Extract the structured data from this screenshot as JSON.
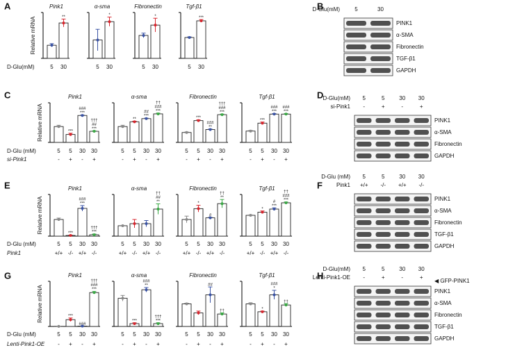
{
  "panel_labels": [
    "A",
    "B",
    "C",
    "D",
    "E",
    "F",
    "G",
    "H"
  ],
  "row_labels": [
    [
      "D-Glu(mM)"
    ],
    [
      "D-Glu (mM)",
      "si-Pink1"
    ],
    [
      "D-Glu (mM)",
      "Pink1"
    ],
    [
      "D-Glu (mM)",
      "Lenti-Pink1-OE"
    ]
  ],
  "chart_data": [
    {
      "type": "bar",
      "title": "Pink1",
      "y_label": "Relative mRNA",
      "categories": [
        "5",
        "30"
      ],
      "values": [
        1.0,
        2.7
      ],
      "errors": [
        0.12,
        0.3
      ],
      "colors": [
        "#3a53a4",
        "#d7262e"
      ],
      "ylim": [
        0,
        3.5
      ],
      "annotations": [
        [],
        [
          "**"
        ]
      ]
    },
    {
      "type": "bar",
      "title": "α-sma",
      "categories": [
        "5",
        "30"
      ],
      "values": [
        0.6,
        1.2
      ],
      "errors": [
        0.35,
        0.15
      ],
      "colors": [
        "#3a53a4",
        "#d7262e"
      ],
      "ylim": [
        0,
        1.5
      ],
      "annotations": [
        [],
        [
          "*"
        ]
      ]
    },
    {
      "type": "bar",
      "title": "Fibronectin",
      "categories": [
        "5",
        "30"
      ],
      "values": [
        1.0,
        1.45
      ],
      "errors": [
        0.1,
        0.3
      ],
      "colors": [
        "#3a53a4",
        "#d7262e"
      ],
      "ylim": [
        0,
        2
      ],
      "annotations": [
        [],
        [
          "*"
        ]
      ]
    },
    {
      "type": "bar",
      "title": "Tgf-β1",
      "categories": [
        "5",
        "30"
      ],
      "values": [
        1.0,
        1.8
      ],
      "errors": [
        0.03,
        0.06
      ],
      "colors": [
        "#3a53a4",
        "#d7262e"
      ],
      "ylim": [
        0,
        2.2
      ],
      "annotations": [
        [],
        [
          "***"
        ]
      ]
    },
    {
      "type": "bar",
      "title": "Pink1",
      "y_label": "Relative mRNA",
      "categories": [
        "5",
        "5",
        "30",
        "30"
      ],
      "secondary": [
        "-",
        "+",
        "-",
        "+"
      ],
      "values": [
        1.0,
        0.5,
        1.7,
        0.7
      ],
      "errors": [
        0.08,
        0.08,
        0.03,
        0.03
      ],
      "colors": [
        "#888888",
        "#d7262e",
        "#3a53a4",
        "#3aa845"
      ],
      "ylim": [
        0,
        2.5
      ],
      "annotations": [
        [],
        [
          "***"
        ],
        [
          "###",
          "***"
        ],
        [
          "†††",
          "##",
          "***"
        ]
      ]
    },
    {
      "type": "bar",
      "title": "α-sma",
      "categories": [
        "5",
        "5",
        "30",
        "30"
      ],
      "secondary": [
        "-",
        "+",
        "-",
        "+"
      ],
      "values": [
        1.0,
        1.3,
        1.5,
        1.8
      ],
      "errors": [
        0.08,
        0.04,
        0.03,
        0.05
      ],
      "colors": [
        "#888888",
        "#d7262e",
        "#3a53a4",
        "#3aa845"
      ],
      "ylim": [
        0,
        2.5
      ],
      "annotations": [
        [],
        [
          "**"
        ],
        [
          "##",
          "***"
        ],
        [
          "††",
          "###",
          "***"
        ]
      ]
    },
    {
      "type": "bar",
      "title": "Fibronectin",
      "categories": [
        "5",
        "5",
        "30",
        "30"
      ],
      "secondary": [
        "-",
        "+",
        "-",
        "+"
      ],
      "values": [
        1.0,
        2.2,
        1.3,
        2.8
      ],
      "errors": [
        0.05,
        0.08,
        0.05,
        0.06
      ],
      "colors": [
        "#888888",
        "#d7262e",
        "#3a53a4",
        "#3aa845"
      ],
      "ylim": [
        0,
        4
      ],
      "annotations": [
        [],
        [
          "***"
        ],
        [
          "###",
          "**"
        ],
        [
          "†††",
          "###",
          "***"
        ]
      ]
    },
    {
      "type": "bar",
      "title": "Tgf-β1",
      "categories": [
        "5",
        "5",
        "30",
        "30"
      ],
      "secondary": [
        "-",
        "+",
        "-",
        "+"
      ],
      "values": [
        1.0,
        1.7,
        2.5,
        2.5
      ],
      "errors": [
        0.05,
        0.1,
        0.05,
        0.05
      ],
      "colors": [
        "#888888",
        "#d7262e",
        "#3a53a4",
        "#3aa845"
      ],
      "ylim": [
        0,
        3.5
      ],
      "annotations": [
        [],
        [
          "***"
        ],
        [
          "###",
          "***"
        ],
        [
          "###",
          "***"
        ]
      ]
    },
    {
      "type": "bar",
      "title": "Pink1",
      "y_label": "Relative mRNA",
      "categories": [
        "5",
        "5",
        "30",
        "30"
      ],
      "secondary": [
        "+/+",
        "-/-",
        "+/+",
        "-/-"
      ],
      "values": [
        1.2,
        0.05,
        2.0,
        0.1
      ],
      "errors": [
        0.1,
        0.03,
        0.2,
        0.05
      ],
      "colors": [
        "#888888",
        "#d7262e",
        "#3a53a4",
        "#3aa845"
      ],
      "ylim": [
        0,
        3
      ],
      "annotations": [
        [],
        [
          "***"
        ],
        [
          "###",
          "***"
        ],
        [
          "†††",
          "***"
        ]
      ]
    },
    {
      "type": "bar",
      "title": "α-sma",
      "categories": [
        "5",
        "5",
        "30",
        "30"
      ],
      "secondary": [
        "+/+",
        "-/-",
        "+/+",
        "-/-"
      ],
      "values": [
        1.0,
        1.2,
        1.2,
        2.6
      ],
      "errors": [
        0.03,
        0.4,
        0.3,
        0.5
      ],
      "colors": [
        "#888888",
        "#d7262e",
        "#3a53a4",
        "#3aa845"
      ],
      "ylim": [
        0,
        4
      ],
      "annotations": [
        [],
        [],
        [],
        [
          "††",
          "##",
          "**"
        ]
      ]
    },
    {
      "type": "bar",
      "title": "Fibronectin",
      "categories": [
        "5",
        "5",
        "30",
        "30"
      ],
      "secondary": [
        "+/+",
        "-/-",
        "+/+",
        "-/-"
      ],
      "values": [
        1.0,
        1.65,
        1.1,
        1.95
      ],
      "errors": [
        0.2,
        0.2,
        0.03,
        0.25
      ],
      "colors": [
        "#888888",
        "#d7262e",
        "#3a53a4",
        "#3aa845"
      ],
      "ylim": [
        0,
        2.5
      ],
      "annotations": [
        [],
        [
          "*"
        ],
        [
          "#"
        ],
        [
          "††",
          "**"
        ]
      ]
    },
    {
      "type": "bar",
      "title": "Tgf-β1",
      "categories": [
        "5",
        "5",
        "30",
        "30"
      ],
      "secondary": [
        "+/+",
        "-/-",
        "+/+",
        "-/-"
      ],
      "values": [
        1.0,
        1.15,
        1.3,
        1.6
      ],
      "errors": [
        0.02,
        0.06,
        0.06,
        0.04
      ],
      "colors": [
        "#888888",
        "#d7262e",
        "#3a53a4",
        "#3aa845"
      ],
      "ylim": [
        0,
        2
      ],
      "annotations": [
        [],
        [
          "*"
        ],
        [
          "#",
          "***"
        ],
        [
          "††",
          "###",
          "***"
        ]
      ]
    },
    {
      "type": "bar",
      "title": "Pink1",
      "y_label": "Relative mRNA",
      "categories": [
        "5",
        "5",
        "30",
        "30"
      ],
      "secondary": [
        "-",
        "+",
        "-",
        "+"
      ],
      "values": [
        1,
        60,
        3,
        300
      ],
      "errors": [
        1,
        15,
        2,
        10
      ],
      "colors": [
        "#888888",
        "#d7262e",
        "#3a53a4",
        "#3aa845"
      ],
      "ylim": [
        0,
        400
      ],
      "annotations": [
        [],
        [
          "***"
        ],
        [
          "###"
        ],
        [
          "†††",
          "###",
          "***"
        ]
      ]
    },
    {
      "type": "bar",
      "title": "α-sma",
      "categories": [
        "5",
        "5",
        "30",
        "30"
      ],
      "secondary": [
        "-",
        "+",
        "-",
        "+"
      ],
      "values": [
        1.0,
        0.1,
        1.3,
        0.1
      ],
      "errors": [
        0.1,
        0.03,
        0.08,
        0.03
      ],
      "colors": [
        "#888888",
        "#d7262e",
        "#3a53a4",
        "#3aa845"
      ],
      "ylim": [
        0,
        1.6
      ],
      "annotations": [
        [],
        [
          "***"
        ],
        [
          "###",
          "**"
        ],
        [
          "†††",
          "***"
        ]
      ]
    },
    {
      "type": "bar",
      "title": "Fibronectin",
      "categories": [
        "5",
        "5",
        "30",
        "30"
      ],
      "secondary": [
        "-",
        "+",
        "-",
        "+"
      ],
      "values": [
        1.0,
        0.6,
        1.4,
        0.55
      ],
      "errors": [
        0.03,
        0.08,
        0.35,
        0.05
      ],
      "colors": [
        "#888888",
        "#d7262e",
        "#3a53a4",
        "#3aa845"
      ],
      "ylim": [
        0,
        2
      ],
      "annotations": [
        [],
        [],
        [
          "##"
        ],
        [
          "††"
        ]
      ]
    },
    {
      "type": "bar",
      "title": "Tgf-β1",
      "categories": [
        "5",
        "5",
        "30",
        "30"
      ],
      "secondary": [
        "-",
        "+",
        "-",
        "+"
      ],
      "values": [
        1.0,
        0.65,
        1.4,
        0.95
      ],
      "errors": [
        0.05,
        0.03,
        0.2,
        0.06
      ],
      "colors": [
        "#888888",
        "#d7262e",
        "#3a53a4",
        "#3aa845"
      ],
      "ylim": [
        0,
        2
      ],
      "annotations": [
        [],
        [
          "*"
        ],
        [
          "###",
          "*"
        ],
        [
          "††"
        ]
      ]
    }
  ],
  "blots": [
    {
      "header": [
        {
          "label": "D-Glu(mM)",
          "lanes": [
            "5",
            "30"
          ]
        }
      ],
      "rows": [
        "PINK1",
        "α-SMA",
        "Fibronectin",
        "TGF-β1",
        "GAPDH"
      ]
    },
    {
      "header": [
        {
          "label": "D-Glu(mM)",
          "lanes": [
            "5",
            "5",
            "30",
            "30"
          ]
        },
        {
          "label": "si-Pink1",
          "lanes": [
            "-",
            "+",
            "-",
            "+"
          ]
        }
      ],
      "rows": [
        "PINK1",
        "α-SMA",
        "Fibronectin",
        "GAPDH"
      ]
    },
    {
      "header": [
        {
          "label": "D-Glu (mM)",
          "lanes": [
            "5",
            "5",
            "30",
            "30"
          ]
        },
        {
          "label": "Pink1",
          "lanes": [
            "+/+",
            "-/-",
            "+/+",
            "-/-"
          ]
        }
      ],
      "rows": [
        "PINK1",
        "α-SMA",
        "Fibronectin",
        "TGF-β1",
        "GAPDH"
      ]
    },
    {
      "header": [
        {
          "label": "D-Glu(mM)",
          "lanes": [
            "5",
            "5",
            "30",
            "30"
          ]
        },
        {
          "label": "Lenti-Pink1-OE",
          "lanes": [
            "-",
            "+",
            "-",
            "+"
          ]
        }
      ],
      "rows": [
        "PINK1",
        "α-SMA",
        "Fibronectin",
        "TGF-β1",
        "GAPDH"
      ],
      "marker": "◀ GFP-PINK1"
    }
  ]
}
